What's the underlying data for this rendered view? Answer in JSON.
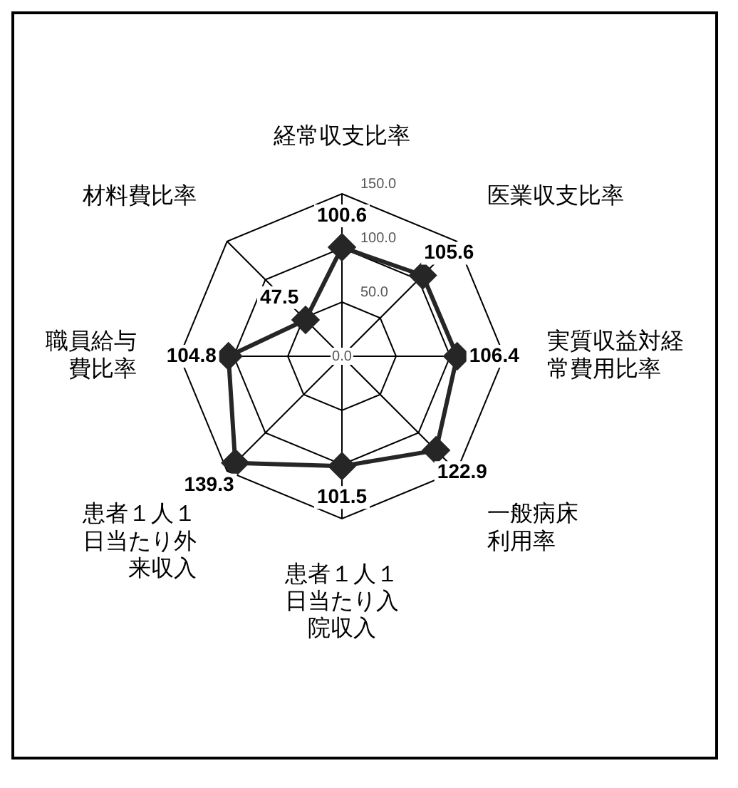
{
  "chart_data": {
    "type": "radar",
    "categories": [
      "経常収支比率",
      "医業収支比率",
      "実質収益対経常費用比率",
      "一般病床利用率",
      "患者１人１日当たり入院収入",
      "患者１人１日当たり外来収入",
      "職員給与費比率",
      "材料費比率"
    ],
    "series": [
      {
        "color": "#262626",
        "values": [
          100.6,
          105.6,
          106.4,
          122.9,
          101.5,
          139.3,
          104.8,
          47.5
        ]
      }
    ],
    "ylim": [
      0,
      150
    ],
    "yticks": [
      {
        "value": 0,
        "label": "0.0"
      },
      {
        "value": 50,
        "label": "50.0"
      },
      {
        "value": 100,
        "label": "100.0"
      },
      {
        "value": 150,
        "label": "150.0"
      }
    ],
    "grid": true,
    "marker": "diamond",
    "data_labels": true,
    "legend": false
  }
}
